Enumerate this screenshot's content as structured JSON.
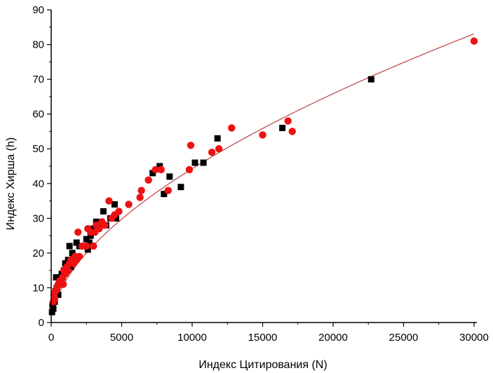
{
  "chart_data": {
    "type": "scatter",
    "title": "",
    "xlabel": "Индекс Цитирования (N)",
    "ylabel": "Индекс Хирша (h)",
    "xlim": [
      0,
      30000
    ],
    "ylim": [
      0,
      90
    ],
    "xticks": [
      0,
      5000,
      10000,
      15000,
      20000,
      25000,
      30000
    ],
    "yticks": [
      0,
      10,
      20,
      30,
      40,
      50,
      60,
      70,
      80,
      90
    ],
    "grid": false,
    "legend": "none",
    "series": [
      {
        "marker": "square",
        "color": "#000000",
        "points": [
          [
            60,
            3
          ],
          [
            100,
            5
          ],
          [
            150,
            4
          ],
          [
            200,
            7
          ],
          [
            250,
            6
          ],
          [
            300,
            9
          ],
          [
            350,
            13
          ],
          [
            400,
            10
          ],
          [
            500,
            8
          ],
          [
            550,
            13
          ],
          [
            600,
            11
          ],
          [
            700,
            12
          ],
          [
            750,
            14
          ],
          [
            800,
            13
          ],
          [
            900,
            15
          ],
          [
            1000,
            17
          ],
          [
            1100,
            16
          ],
          [
            1200,
            18
          ],
          [
            1300,
            22
          ],
          [
            1400,
            16
          ],
          [
            1500,
            20
          ],
          [
            1600,
            19
          ],
          [
            1800,
            23
          ],
          [
            2000,
            22
          ],
          [
            2200,
            22
          ],
          [
            2500,
            24
          ],
          [
            2600,
            21
          ],
          [
            2700,
            23
          ],
          [
            2800,
            25
          ],
          [
            3000,
            27
          ],
          [
            3200,
            29
          ],
          [
            3500,
            28
          ],
          [
            3700,
            32
          ],
          [
            3900,
            28
          ],
          [
            4200,
            30
          ],
          [
            4500,
            34
          ],
          [
            4600,
            30
          ],
          [
            7200,
            43
          ],
          [
            7700,
            45
          ],
          [
            8000,
            37
          ],
          [
            8400,
            42
          ],
          [
            9200,
            39
          ],
          [
            10200,
            46
          ],
          [
            10800,
            46
          ],
          [
            11800,
            53
          ],
          [
            16400,
            56
          ],
          [
            22700,
            70
          ]
        ]
      },
      {
        "marker": "circle",
        "color": "#ee1111",
        "points": [
          [
            150,
            6
          ],
          [
            200,
            8
          ],
          [
            250,
            7
          ],
          [
            300,
            9
          ],
          [
            400,
            10
          ],
          [
            500,
            11
          ],
          [
            600,
            12
          ],
          [
            700,
            11
          ],
          [
            800,
            13
          ],
          [
            850,
            11
          ],
          [
            900,
            15
          ],
          [
            1000,
            14
          ],
          [
            1100,
            16
          ],
          [
            1200,
            15
          ],
          [
            1300,
            17
          ],
          [
            1400,
            18
          ],
          [
            1500,
            18
          ],
          [
            1600,
            17
          ],
          [
            1700,
            19
          ],
          [
            1800,
            18
          ],
          [
            1900,
            26
          ],
          [
            2000,
            19
          ],
          [
            2200,
            22
          ],
          [
            2500,
            22
          ],
          [
            2600,
            27
          ],
          [
            2800,
            26
          ],
          [
            3000,
            22
          ],
          [
            3100,
            26
          ],
          [
            3200,
            28
          ],
          [
            3400,
            27
          ],
          [
            3600,
            29
          ],
          [
            3800,
            28
          ],
          [
            4100,
            35
          ],
          [
            4300,
            30
          ],
          [
            4500,
            31
          ],
          [
            4800,
            32
          ],
          [
            5500,
            34
          ],
          [
            6300,
            36
          ],
          [
            6400,
            38
          ],
          [
            6900,
            41
          ],
          [
            7400,
            44
          ],
          [
            7800,
            44
          ],
          [
            8300,
            38
          ],
          [
            9800,
            44
          ],
          [
            9900,
            51
          ],
          [
            11400,
            49
          ],
          [
            11900,
            50
          ],
          [
            12800,
            56
          ],
          [
            15000,
            54
          ],
          [
            16800,
            58
          ],
          [
            17100,
            55
          ],
          [
            30000,
            81
          ]
        ]
      }
    ],
    "fit": {
      "type": "power",
      "color": "#c04040",
      "a": 0.226,
      "b": 0.573,
      "x_range": [
        100,
        30000
      ]
    }
  }
}
